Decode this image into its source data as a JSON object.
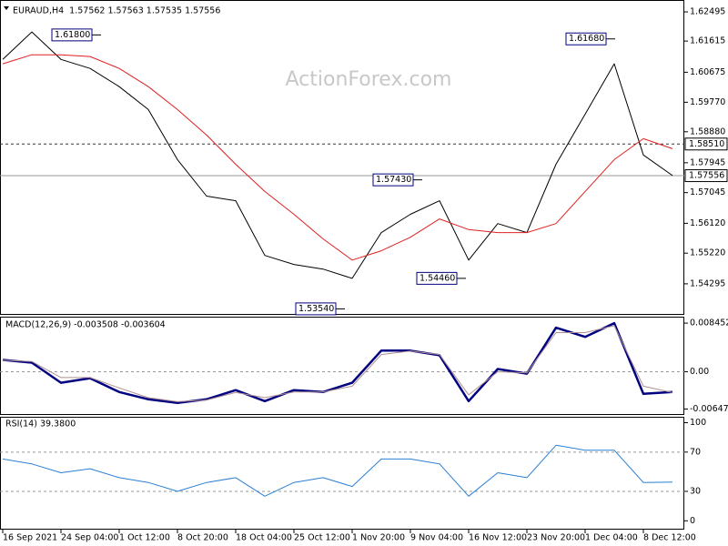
{
  "chart_data": [
    {
      "type": "line",
      "title": "EURAUD,H4  1.57562 1.57563 1.57535 1.57556",
      "watermark": "ActionForex.com",
      "categories": [
        "16 Sep 2021",
        null,
        "24 Sep 04:00",
        null,
        "1 Oct 12:00",
        null,
        "8 Oct 20:00",
        null,
        "18 Oct 04:00",
        null,
        "25 Oct 12:00",
        null,
        "1 Nov 20:00",
        null,
        "9 Nov 04:00",
        null,
        "16 Nov 12:00",
        null,
        "23 Nov 20:00",
        null,
        "1 Dec 04:00",
        null,
        "8 Dec 12:00",
        null
      ],
      "series": [
        {
          "color": "#000000",
          "values": [
            1.6106,
            1.6189,
            1.6106,
            1.6079,
            1.6024,
            1.5955,
            1.5804,
            1.5694,
            1.568,
            1.5515,
            1.5488,
            1.5474,
            1.5446,
            1.5584,
            1.5639,
            1.568,
            1.5501,
            1.5611,
            1.5584,
            1.579,
            1.5941,
            1.6093,
            1.5818,
            1.5756
          ]
        },
        {
          "color": "#e02020",
          "values": [
            1.6093,
            1.612,
            1.612,
            1.6115,
            1.6079,
            1.6024,
            1.5955,
            1.5878,
            1.579,
            1.5708,
            1.5639,
            1.5565,
            1.5501,
            1.5529,
            1.557,
            1.5625,
            1.5593,
            1.5584,
            1.5584,
            1.5611,
            1.5708,
            1.5804,
            1.5867,
            1.5837
          ]
        }
      ],
      "ylim": [
        1.53359,
        1.62853
      ],
      "yticks": [
        1.62495,
        1.61615,
        1.60675,
        {
          "value": 1.5977,
          "label": "1.59770"
        },
        {
          "value": 1.5888,
          "label": "1.58880"
        },
        1.57945,
        1.57045,
        {
          "value": 1.5612,
          "label": "1.56120"
        },
        {
          "value": 1.5522,
          "label": "1.55220"
        },
        1.54295
      ],
      "levels": [
        {
          "value": 1.5851,
          "label": "1.58510",
          "style": "dashed"
        },
        {
          "value": 1.57556,
          "label": "1.57556",
          "style": "solid"
        }
      ],
      "annotations": [
        {
          "value": 1.618,
          "label": "1.61800"
        },
        {
          "value": 1.6168,
          "label": "1.61680"
        },
        {
          "value": 1.5743,
          "label": "1.57430"
        },
        {
          "value": 1.5446,
          "label": "1.54460"
        },
        {
          "value": 1.5354,
          "label": "1.53540"
        }
      ]
    },
    {
      "type": "line",
      "title": "MACD(12,26,9) -0.003508 -0.003604",
      "series": [
        {
          "color": "#000080",
          "values": [
            0.00207,
            0.00159,
            -0.00191,
            -0.00112,
            -0.00351,
            -0.00478,
            -0.00542,
            -0.00478,
            -0.00319,
            -0.0051,
            -0.00319,
            -0.00351,
            -0.00191,
            0.00367,
            0.00367,
            0.00287,
            -0.0051,
            0.00048,
            -0.00032,
            0.00765,
            0.00606,
            0.00845,
            -0.00383,
            -0.003508
          ]
        },
        {
          "color": "#b09090",
          "values": [
            0.002,
            0.0018,
            -0.001,
            -0.001,
            -0.0028,
            -0.0045,
            -0.0052,
            -0.0049,
            -0.0036,
            -0.0045,
            -0.0035,
            -0.0035,
            -0.0025,
            0.003,
            0.0036,
            0.003,
            -0.004,
            0.0,
            -0.0002,
            0.0068,
            0.0068,
            0.008,
            -0.0025,
            -0.003604
          ]
        }
      ],
      "ylim": [
        -0.0075,
        0.00957
      ],
      "yticks": [
        0.008452,
        {
          "value": 0,
          "label": "0.00"
        },
        -0.006475
      ]
    },
    {
      "type": "line",
      "title": "RSI(14) 39.3800",
      "series": [
        {
          "color": "#2a7fd4",
          "values": [
            63,
            58,
            49,
            53,
            44,
            39,
            30,
            39,
            44,
            25,
            39,
            44,
            35,
            63,
            63,
            58,
            25,
            49,
            44,
            77,
            72,
            72,
            39,
            39.38
          ]
        }
      ],
      "ylim": [
        -9,
        106
      ],
      "yticks": [
        100,
        70,
        30,
        0
      ]
    }
  ]
}
